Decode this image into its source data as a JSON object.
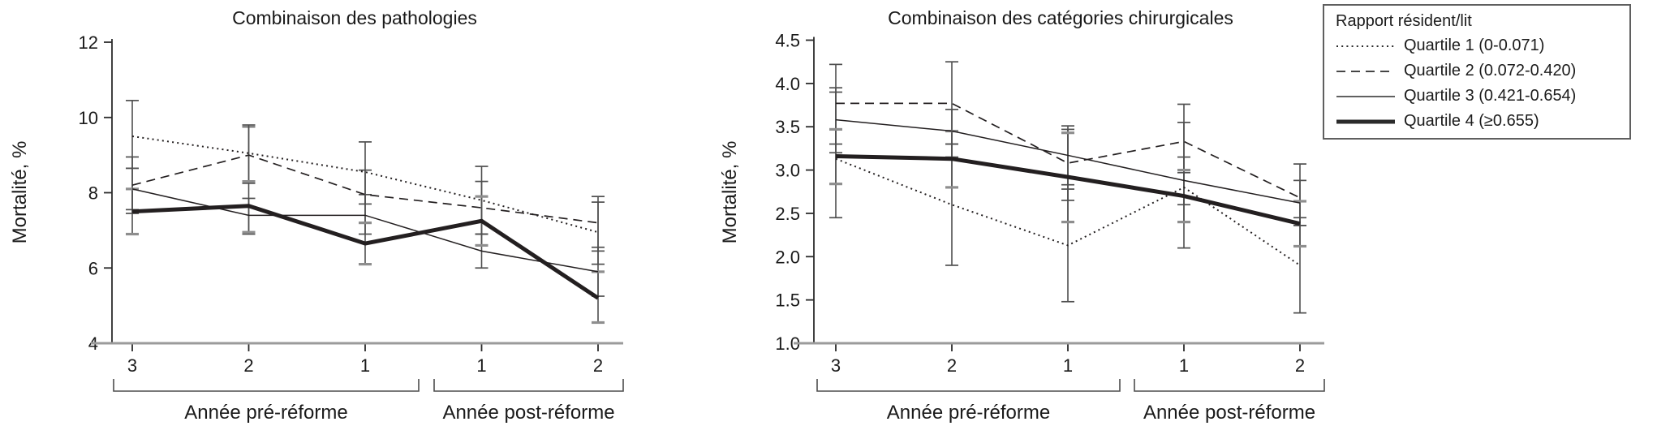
{
  "figure": {
    "colors": {
      "line": "#231f20",
      "error_bar": "#4f4f4f",
      "error_cap_thick": "#8e8e8e",
      "baseline": "#9b9b9b",
      "axis": "#2b2b2b",
      "text": "#1a1a1a",
      "legend_border": "#5f5f5f"
    }
  },
  "legend": {
    "title": "Rapport résident/lit",
    "items": [
      {
        "label": "Quartile 1 (0-0.071)",
        "style": "dotted"
      },
      {
        "label": "Quartile 2 (0.072-0.420)",
        "style": "dashed"
      },
      {
        "label": "Quartile 3 (0.421-0.654)",
        "style": "solid-thin"
      },
      {
        "label": "Quartile 4 (≥0.655)",
        "style": "solid-thick"
      }
    ]
  },
  "chart_data": [
    {
      "type": "line",
      "title": "Combinaison des pathologies",
      "ylabel": "Mortalité, %",
      "ylim": [
        4,
        12
      ],
      "yticks": [
        {
          "v": 4,
          "label": "4"
        },
        {
          "v": 6,
          "label": "6"
        },
        {
          "v": 8,
          "label": "8"
        },
        {
          "v": 10,
          "label": "10"
        },
        {
          "v": 12,
          "label": "12"
        }
      ],
      "categories": [
        "3",
        "2",
        "1",
        "1",
        "2"
      ],
      "x_groups": [
        {
          "label": "Année pré-réforme",
          "span": [
            0,
            2
          ]
        },
        {
          "label": "Année post-réforme",
          "span": [
            3,
            4
          ]
        }
      ],
      "grid": false,
      "series": [
        {
          "name": "Quartile 1 (0-0.071)",
          "style": "dotted",
          "values": [
            9.5,
            9.05,
            8.55,
            7.8,
            6.95
          ],
          "error_bars": [
            [
              8.65,
              10.45
            ],
            [
              8.25,
              9.8
            ],
            [
              7.7,
              9.35
            ],
            [
              6.9,
              8.7
            ],
            [
              6.1,
              7.75
            ]
          ]
        },
        {
          "name": "Quartile 2 (0.072-0.420)",
          "style": "dashed",
          "values": [
            8.2,
            9.0,
            7.95,
            7.6,
            7.2
          ],
          "error_bars": [
            [
              7.45,
              8.95
            ],
            [
              8.3,
              9.75
            ],
            [
              7.2,
              8.6
            ],
            [
              6.9,
              8.3
            ],
            [
              6.45,
              7.9
            ]
          ]
        },
        {
          "name": "Quartile 3 (0.421-0.654)",
          "style": "solid-thin",
          "values": [
            8.1,
            7.4,
            7.4,
            6.45,
            5.9
          ],
          "error_bars": [
            [
              7.55,
              8.65
            ],
            [
              6.9,
              7.85
            ],
            [
              6.9,
              7.95
            ],
            [
              6.0,
              6.9
            ],
            [
              5.25,
              6.55
            ]
          ]
        },
        {
          "name": "Quartile 4 (≥0.655)",
          "style": "solid-thick",
          "values": [
            7.5,
            7.65,
            6.65,
            7.25,
            5.2
          ],
          "error_bars": [
            [
              6.9,
              8.1
            ],
            [
              6.95,
              8.3
            ],
            [
              6.1,
              7.2
            ],
            [
              6.6,
              7.9
            ],
            [
              4.55,
              5.9
            ]
          ]
        }
      ]
    },
    {
      "type": "line",
      "title": "Combinaison des catégories chirurgicales",
      "ylabel": "Mortalité, %",
      "ylim": [
        1.0,
        4.5
      ],
      "yticks": [
        {
          "v": 1.0,
          "label": "1.0"
        },
        {
          "v": 1.5,
          "label": "1.5"
        },
        {
          "v": 2.0,
          "label": "2.0"
        },
        {
          "v": 2.5,
          "label": "2.5"
        },
        {
          "v": 3.0,
          "label": "3.0"
        },
        {
          "v": 3.5,
          "label": "3.5"
        },
        {
          "v": 4.0,
          "label": "4.0"
        },
        {
          "v": 4.5,
          "label": "4.5"
        }
      ],
      "categories": [
        "3",
        "2",
        "1",
        "1",
        "2"
      ],
      "x_groups": [
        {
          "label": "Année pré-réforme",
          "span": [
            0,
            2
          ]
        },
        {
          "label": "Année post-réforme",
          "span": [
            3,
            4
          ]
        }
      ],
      "grid": false,
      "series": [
        {
          "name": "Quartile 1 (0-0.071)",
          "style": "dotted",
          "values": [
            3.13,
            2.6,
            2.13,
            2.8,
            1.9
          ],
          "error_bars": [
            [
              2.45,
              3.9
            ],
            [
              1.9,
              3.3
            ],
            [
              1.48,
              2.78
            ],
            [
              2.1,
              3.55
            ],
            [
              1.35,
              2.45
            ]
          ]
        },
        {
          "name": "Quartile 2 (0.072-0.420)",
          "style": "dashed",
          "values": [
            3.77,
            3.77,
            3.08,
            3.33,
            2.68
          ],
          "error_bars": [
            [
              3.3,
              4.22
            ],
            [
              3.3,
              4.25
            ],
            [
              2.65,
              3.51
            ],
            [
              2.97,
              3.76
            ],
            [
              2.36,
              3.07
            ]
          ]
        },
        {
          "name": "Quartile 3 (0.421-0.654)",
          "style": "solid-thin",
          "values": [
            3.58,
            3.45,
            3.17,
            2.88,
            2.62
          ],
          "error_bars": [
            [
              3.2,
              3.95
            ],
            [
              3.15,
              3.7
            ],
            [
              2.83,
              3.47
            ],
            [
              2.6,
              3.15
            ],
            [
              2.36,
              2.88
            ]
          ]
        },
        {
          "name": "Quartile 4 (≥0.655)",
          "style": "solid-thick",
          "values": [
            3.16,
            3.13,
            2.92,
            2.7,
            2.38
          ],
          "error_bars": [
            [
              2.84,
              3.47
            ],
            [
              2.8,
              3.45
            ],
            [
              2.4,
              3.43
            ],
            [
              2.4,
              3.0
            ],
            [
              2.12,
              2.64
            ]
          ]
        }
      ]
    }
  ]
}
